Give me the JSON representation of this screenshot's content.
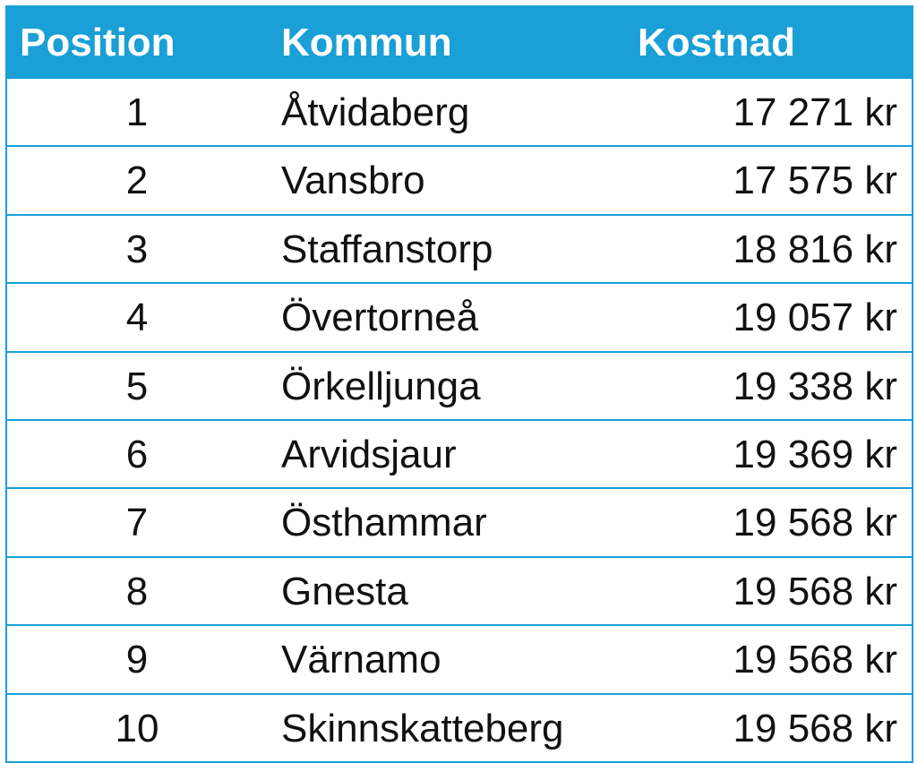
{
  "chart_data": {
    "type": "table",
    "columns": [
      "Position",
      "Kommun",
      "Kostnad"
    ],
    "rows": [
      {
        "position": "1",
        "kommun": "Åtvidaberg",
        "kostnad": "17 271 kr"
      },
      {
        "position": "2",
        "kommun": "Vansbro",
        "kostnad": "17 575 kr"
      },
      {
        "position": "3",
        "kommun": "Staffanstorp",
        "kostnad": "18 816 kr"
      },
      {
        "position": "4",
        "kommun": "Övertorneå",
        "kostnad": "19 057 kr"
      },
      {
        "position": "5",
        "kommun": "Örkelljunga",
        "kostnad": "19 338 kr"
      },
      {
        "position": "6",
        "kommun": "Arvidsjaur",
        "kostnad": "19 369 kr"
      },
      {
        "position": "7",
        "kommun": "Östhammar",
        "kostnad": "19 568 kr"
      },
      {
        "position": "8",
        "kommun": "Gnesta",
        "kostnad": "19 568 kr"
      },
      {
        "position": "9",
        "kommun": "Värnamo",
        "kostnad": "19 568 kr"
      },
      {
        "position": "10",
        "kommun": "Skinnskatteberg",
        "kostnad": "19 568 kr"
      }
    ]
  },
  "colors": {
    "header_background": "#1a9fd6",
    "header_text": "#ffffff",
    "row_divider": "#1a9fd6",
    "body_text": "#111111"
  }
}
